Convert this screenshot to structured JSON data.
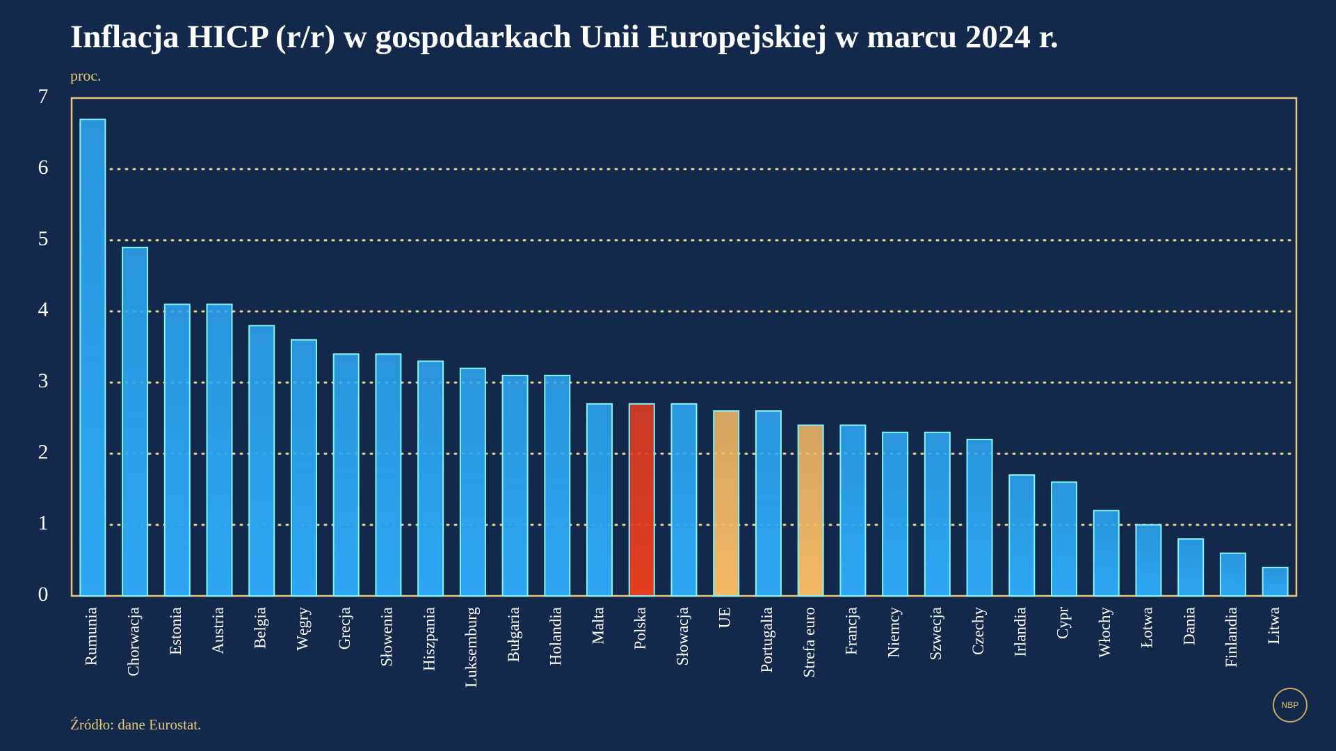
{
  "chart_data": {
    "type": "bar",
    "title": "Inflacja HICP (r/r) w gospodarkach Unii Europejskiej w marcu 2024 r.",
    "y_label": "proc.",
    "source": "Źródło: dane Eurostat.",
    "logo": "NBP",
    "categories": [
      "Rumunia",
      "Chorwacja",
      "Estonia",
      "Austria",
      "Belgia",
      "Węgry",
      "Grecja",
      "Słowenia",
      "Hiszpania",
      "Luksemburg",
      "Bułgaria",
      "Holandia",
      "Malta",
      "Polska",
      "Słowacja",
      "UE",
      "Portugalia",
      "Strefa euro",
      "Francja",
      "Niemcy",
      "Szwecja",
      "Czechy",
      "Irlandia",
      "Cypr",
      "Włochy",
      "Łotwa",
      "Dania",
      "Finlandia",
      "Litwa"
    ],
    "values": [
      6.7,
      4.9,
      4.1,
      4.1,
      3.8,
      3.6,
      3.4,
      3.4,
      3.3,
      3.2,
      3.1,
      3.1,
      2.7,
      2.7,
      2.7,
      2.6,
      2.6,
      2.4,
      2.4,
      2.3,
      2.3,
      2.2,
      1.7,
      1.6,
      1.2,
      1.0,
      0.8,
      0.6,
      0.4
    ],
    "colors": [
      "#2a9fe8",
      "#2a9fe8",
      "#2a9fe8",
      "#2a9fe8",
      "#2a9fe8",
      "#2a9fe8",
      "#2a9fe8",
      "#2a9fe8",
      "#2a9fe8",
      "#2a9fe8",
      "#2a9fe8",
      "#2a9fe8",
      "#2a9fe8",
      "#d93a1e",
      "#2a9fe8",
      "#e8b060",
      "#2a9fe8",
      "#e8b060",
      "#2a9fe8",
      "#2a9fe8",
      "#2a9fe8",
      "#2a9fe8",
      "#2a9fe8",
      "#2a9fe8",
      "#2a9fe8",
      "#2a9fe8",
      "#2a9fe8",
      "#2a9fe8",
      "#2a9fe8"
    ],
    "ylim": [
      0,
      7
    ],
    "yticks": [
      0,
      1,
      2,
      3,
      4,
      5,
      6,
      7
    ],
    "grid": true
  }
}
